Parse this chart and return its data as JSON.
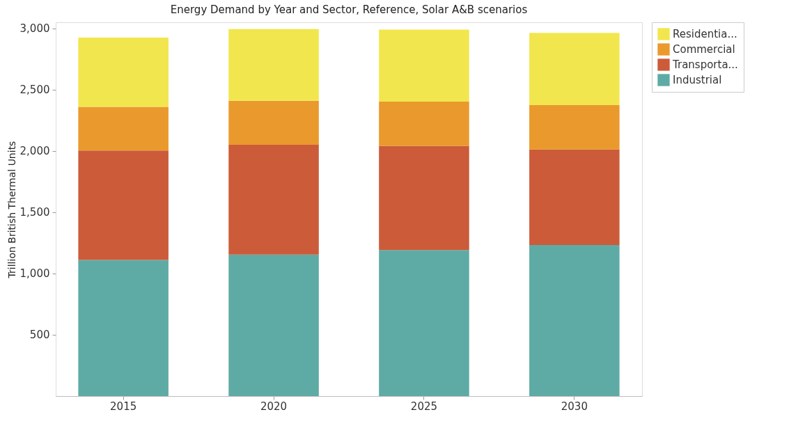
{
  "chart_data": {
    "type": "bar",
    "title": "Energy Demand by Year and Sector, Reference, Solar A&B scenarios",
    "ylabel": "Trillion British Thermal Units",
    "categories": [
      "2015",
      "2020",
      "2025",
      "2030"
    ],
    "stacked": true,
    "ylim": [
      0,
      3050
    ],
    "yticks": [
      {
        "value": 500,
        "label": "500"
      },
      {
        "value": 1000,
        "label": "1,000"
      },
      {
        "value": 1500,
        "label": "1,500"
      },
      {
        "value": 2000,
        "label": "2,000"
      },
      {
        "value": 2500,
        "label": "2,500"
      },
      {
        "value": 3000,
        "label": "3,000"
      }
    ],
    "grid": false,
    "legend": "top right",
    "series": [
      {
        "name": "Industrial",
        "color": "#55a7a0",
        "values": [
          1110,
          1154,
          1191,
          1232
        ]
      },
      {
        "name": "Transporta...",
        "color": "#c9522f",
        "values": [
          894,
          897,
          850,
          780
        ]
      },
      {
        "name": "Commercial",
        "color": "#e99322",
        "values": [
          356,
          358,
          361,
          362
        ]
      },
      {
        "name": "Residentia...",
        "color": "#f1e544",
        "values": [
          565,
          585,
          588,
          589
        ]
      }
    ]
  }
}
